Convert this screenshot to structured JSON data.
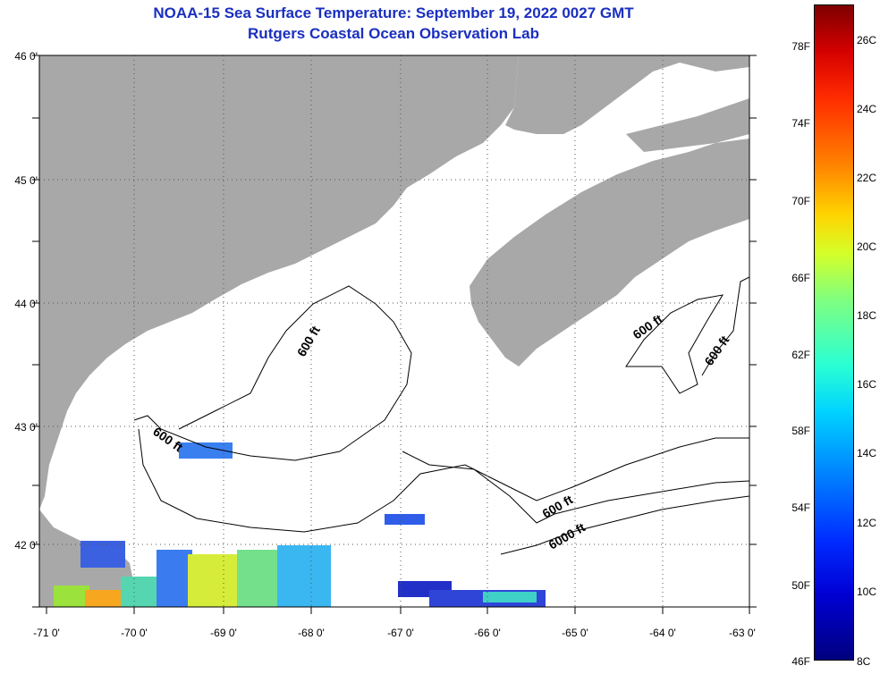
{
  "title_line1": "NOAA-15 Sea Surface Temperature:  September 19, 2022 0027 GMT",
  "title_line2": "Rutgers Coastal Ocean Observation Lab",
  "lat_labels": [
    "46 0'",
    "45 0'",
    "44 0'",
    "43 0'",
    "42 0'"
  ],
  "lon_labels": [
    "-71 0'",
    "-70 0'",
    "-69 0'",
    "-68 0'",
    "-67 0'",
    "-66 0'",
    "-65 0'",
    "-64 0'",
    "-63 0'"
  ],
  "map_extent": {
    "lon": [
      -71,
      -63
    ],
    "lat": [
      41.5,
      46
    ]
  },
  "isobath_labels": [
    "600 ft",
    "600 ft",
    "600 ft",
    "600 ft",
    "600 ft",
    "6000 ft"
  ],
  "colorbar": {
    "f_labels": [
      "78F",
      "74F",
      "70F",
      "66F",
      "62F",
      "58F",
      "54F",
      "50F",
      "46F"
    ],
    "c_labels": [
      "26C",
      "24C",
      "22C",
      "20C",
      "18C",
      "16C",
      "14C",
      "12C",
      "10C",
      "8C"
    ],
    "range_c": [
      8,
      27
    ]
  },
  "colors": {
    "land": "#a8a8a8",
    "title": "#1a2fbf",
    "grid": "#555555"
  }
}
